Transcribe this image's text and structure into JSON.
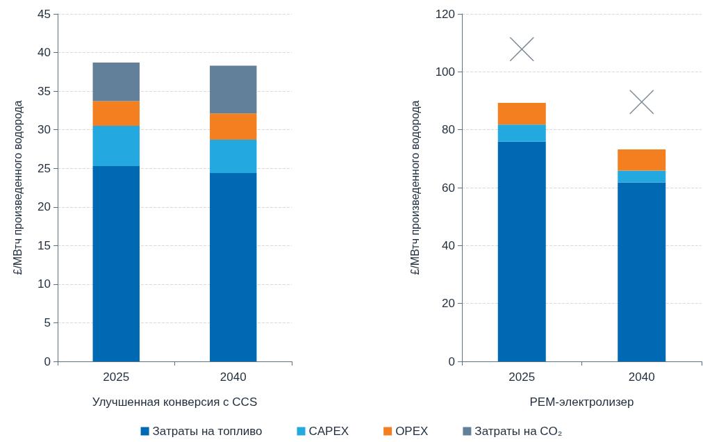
{
  "chart_data": [
    {
      "type": "bar",
      "stacked": true,
      "categories": [
        "2025",
        "2040"
      ],
      "xlabel": "Улучшенная конверсия с CCS",
      "ylabel": "£/МВтч произведенного водорода",
      "ylim": [
        0,
        45
      ],
      "yticks": [
        0,
        5,
        10,
        15,
        20,
        25,
        30,
        35,
        40,
        45
      ],
      "grid": "y",
      "legend": "bottom",
      "series": [
        {
          "name": "Затраты на топливо",
          "color": "#0069b4",
          "values": [
            25.3,
            24.4
          ]
        },
        {
          "name": "CAPEX",
          "color": "#23a8e0",
          "values": [
            5.2,
            4.3
          ]
        },
        {
          "name": "OPEX",
          "color": "#f37f21",
          "values": [
            3.2,
            3.4
          ]
        },
        {
          "name": "Затраты на CO₂",
          "color": "#62809a",
          "values": [
            5.0,
            6.2
          ]
        }
      ]
    },
    {
      "type": "bar",
      "stacked": true,
      "categories": [
        "2025",
        "2040"
      ],
      "xlabel": "PEM-электролизер",
      "ylabel": "£/МВтч произведенного водорода",
      "ylim": [
        0,
        120
      ],
      "yticks": [
        0,
        20,
        40,
        60,
        80,
        100,
        120
      ],
      "grid": "y",
      "marker": "cross",
      "series": [
        {
          "color": "#0069b4",
          "values": [
            75.9,
            61.8
          ]
        },
        {
          "color": "#23a8e0",
          "values": [
            5.9,
            4.1
          ]
        },
        {
          "color": "#f37f21",
          "values": [
            7.5,
            7.3
          ]
        },
        {
          "type": "scatter",
          "color": "#5b6e80",
          "values": [
            107.8,
            89.6
          ]
        }
      ]
    }
  ]
}
